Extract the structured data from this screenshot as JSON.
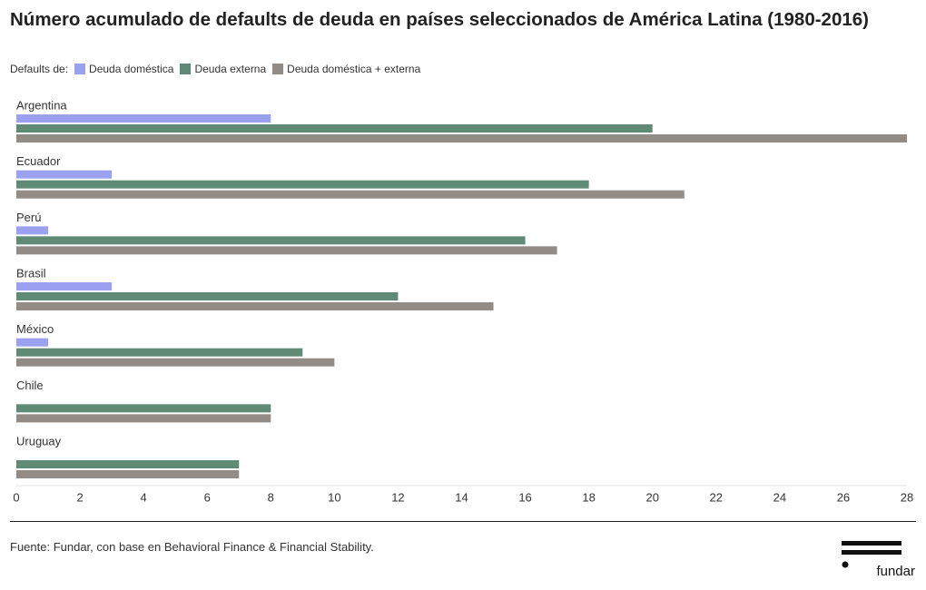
{
  "chart_data": {
    "type": "hbar",
    "title": "Número acumulado de defaults de deuda en países seleccionados de América Latina (1980-2016)",
    "legend_title": "Defaults de:",
    "categories": [
      "Argentina",
      "Ecuador",
      "Perú",
      "Brasil",
      "México",
      "Chile",
      "Uruguay"
    ],
    "series": [
      {
        "name": "Deuda doméstica",
        "color": "#9ba1ef",
        "values": [
          8,
          3,
          1,
          3,
          1,
          0,
          0
        ]
      },
      {
        "name": "Deuda externa",
        "color": "#5f8a75",
        "values": [
          20,
          18,
          16,
          12,
          9,
          8,
          7
        ]
      },
      {
        "name": "Deuda doméstica + externa",
        "color": "#928b86",
        "values": [
          28,
          21,
          17,
          15,
          10,
          8,
          7
        ]
      }
    ],
    "xlim": [
      0,
      28
    ],
    "xticks": [
      0,
      2,
      4,
      6,
      8,
      10,
      12,
      14,
      16,
      18,
      20,
      22,
      24,
      26,
      28
    ],
    "grid": false
  },
  "source": "Fuente: Fundar, con base en Behavioral Finance & Financial Stability.",
  "logo": "fundar"
}
